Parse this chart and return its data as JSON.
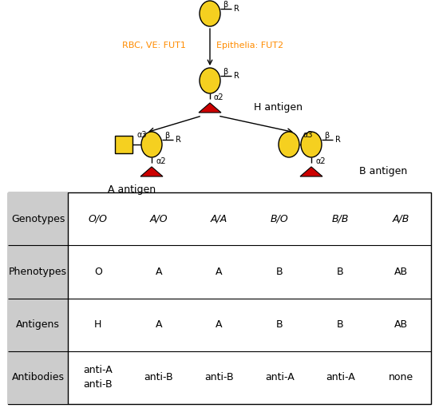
{
  "yellow": "#F5D020",
  "red": "#CC0000",
  "orange": "#FF8C00",
  "black": "#000000",
  "gray_bg": "#CCCCCC",
  "white": "#FFFFFF",
  "table_rows": [
    "Genotypes",
    "Phenotypes",
    "Antigens",
    "Antibodies"
  ],
  "table_cols": [
    "O/O",
    "A/O",
    "A/A",
    "B/O",
    "B/B",
    "A/B"
  ],
  "phenotypes": [
    "O",
    "A",
    "A",
    "B",
    "B",
    "AB"
  ],
  "antigens": [
    "H",
    "A",
    "A",
    "B",
    "B",
    "AB"
  ],
  "antibodies": [
    [
      "anti-A",
      "anti-B"
    ],
    [
      "anti-B"
    ],
    [
      "anti-B"
    ],
    [
      "anti-A"
    ],
    [
      "anti-A"
    ],
    [
      "none"
    ]
  ],
  "fig_w": 5.5,
  "fig_h": 5.11,
  "dpi": 100
}
